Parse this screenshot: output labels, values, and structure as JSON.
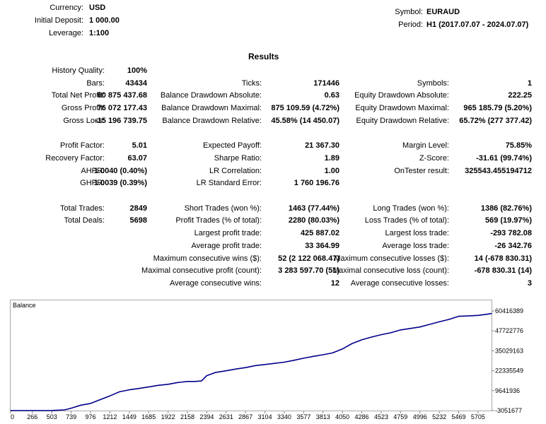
{
  "header": {
    "currency_label": "Currency:",
    "currency_value": "USD",
    "deposit_label": "Initial Deposit:",
    "deposit_value": "1 000.00",
    "leverage_label": "Leverage:",
    "leverage_value": "1:100",
    "symbol_label": "Symbol:",
    "symbol_value": "EURAUD",
    "period_label": "Period:",
    "period_value": "H1 (2017.07.07 - 2024.07.07)"
  },
  "results_title": "Results",
  "rows": [
    {
      "c1": {
        "l": "History Quality:",
        "v": "100%"
      }
    },
    {
      "c1": {
        "l": "Bars:",
        "v": "43434"
      },
      "c2": {
        "l": "Ticks:",
        "v": "171446"
      },
      "c3": {
        "l": "Symbols:",
        "v": "1"
      }
    },
    {
      "c1": {
        "l": "Total Net Profit:",
        "v": "60 875 437.68"
      },
      "c2": {
        "l": "Balance Drawdown Absolute:",
        "v": "0.63"
      },
      "c3": {
        "l": "Equity Drawdown Absolute:",
        "v": "222.25"
      }
    },
    {
      "c1": {
        "l": "Gross Profit:",
        "v": "76 072 177.43"
      },
      "c2": {
        "l": "Balance Drawdown Maximal:",
        "v": "875 109.59 (4.72%)"
      },
      "c3": {
        "l": "Equity Drawdown Maximal:",
        "v": "965 185.79 (5.20%)"
      }
    },
    {
      "c1": {
        "l": "Gross Loss:",
        "v": "-15 196 739.75"
      },
      "c2": {
        "l": "Balance Drawdown Relative:",
        "v": "45.58% (14 450.07)"
      },
      "c3": {
        "l": "Equity Drawdown Relative:",
        "v": "65.72% (277 377.42)"
      }
    },
    {},
    {
      "c1": {
        "l": "Profit Factor:",
        "v": "5.01"
      },
      "c2": {
        "l": "Expected Payoff:",
        "v": "21 367.30"
      },
      "c3": {
        "l": "Margin Level:",
        "v": "75.85%"
      }
    },
    {
      "c1": {
        "l": "Recovery Factor:",
        "v": "63.07"
      },
      "c2": {
        "l": "Sharpe Ratio:",
        "v": "1.89"
      },
      "c3": {
        "l": "Z-Score:",
        "v": "-31.61 (99.74%)"
      }
    },
    {
      "c1": {
        "l": "AHPR:",
        "v": "1.0040 (0.40%)"
      },
      "c2": {
        "l": "LR Correlation:",
        "v": "1.00"
      },
      "c3": {
        "l": "OnTester result:",
        "v": "325543.455194712"
      }
    },
    {
      "c1": {
        "l": "GHPR:",
        "v": "1.0039 (0.39%)"
      },
      "c2": {
        "l": "LR Standard Error:",
        "v": "1 760 196.76"
      }
    },
    {},
    {
      "c1": {
        "l": "Total Trades:",
        "v": "2849"
      },
      "c2": {
        "l": "Short Trades (won %):",
        "v": "1463 (77.44%)"
      },
      "c3": {
        "l": "Long Trades (won %):",
        "v": "1386 (82.76%)"
      }
    },
    {
      "c1": {
        "l": "Total Deals:",
        "v": "5698"
      },
      "c2": {
        "l": "Profit Trades (% of total):",
        "v": "2280 (80.03%)"
      },
      "c3": {
        "l": "Loss Trades (% of total):",
        "v": "569 (19.97%)"
      }
    },
    {
      "c2": {
        "l": "Largest profit trade:",
        "v": "425 887.02"
      },
      "c3": {
        "l": "Largest loss trade:",
        "v": "-293 782.08"
      }
    },
    {
      "c2": {
        "l": "Average profit trade:",
        "v": "33 364.99"
      },
      "c3": {
        "l": "Average loss trade:",
        "v": "-26 342.76"
      }
    },
    {
      "c2": {
        "l": "Maximum consecutive wins ($):",
        "v": "52 (2 122 068.47)"
      },
      "c3": {
        "l": "Maximum consecutive losses ($):",
        "v": "14 (-678 830.31)"
      }
    },
    {
      "c2": {
        "l": "Maximal consecutive profit (count):",
        "v": "3 283 597.70 (51)"
      },
      "c3": {
        "l": "Maximal consecutive loss (count):",
        "v": "-678 830.31 (14)"
      }
    },
    {
      "c2": {
        "l": "Average consecutive wins:",
        "v": "12"
      },
      "c3": {
        "l": "Average consecutive losses:",
        "v": "3"
      }
    }
  ],
  "chart_data": {
    "type": "line",
    "title": "Balance",
    "line_color": "#00008b",
    "y_ticks": [
      "60416389",
      "47722776",
      "35029163",
      "22335549",
      "9641936",
      "-3051677"
    ],
    "y_range": [
      -3051677,
      60416389
    ],
    "x_ticks": [
      "0",
      "266",
      "503",
      "739",
      "976",
      "1212",
      "1449",
      "1685",
      "1922",
      "2158",
      "2394",
      "2631",
      "2867",
      "3104",
      "3340",
      "3577",
      "3813",
      "4050",
      "4286",
      "4523",
      "4759",
      "4996",
      "5232",
      "5469",
      "5705"
    ],
    "x_range": [
      0,
      5870
    ],
    "series": [
      {
        "x": [
          0,
          266,
          503,
          660,
          739,
          860,
          976,
          1100,
          1212,
          1330,
          1449,
          1560,
          1685,
          1800,
          1922,
          2040,
          2158,
          2250,
          2330,
          2394,
          2500,
          2631,
          2750,
          2867,
          2990,
          3104,
          3220,
          3340,
          3460,
          3577,
          3700,
          3813,
          3930,
          4050,
          4170,
          4286,
          4400,
          4523,
          4640,
          4759,
          4870,
          4996,
          5110,
          5232,
          5350,
          5469,
          5580,
          5705,
          5800,
          5870
        ],
        "y": [
          -3051677,
          -3051677,
          -3000000,
          -2600000,
          -1500000,
          400000,
          1500000,
          4000000,
          6300000,
          8900000,
          10200000,
          11000000,
          12000000,
          13000000,
          13700000,
          14800000,
          15500000,
          15500000,
          15800000,
          19200000,
          21200000,
          22300000,
          23400000,
          24300000,
          25600000,
          26300000,
          27000000,
          27800000,
          29000000,
          30300000,
          31500000,
          32500000,
          33700000,
          36200000,
          39700000,
          42000000,
          43700000,
          45300000,
          46500000,
          48300000,
          49200000,
          50200000,
          51800000,
          53500000,
          55000000,
          57000000,
          57200000,
          57600000,
          58200000,
          58800000
        ]
      }
    ]
  }
}
